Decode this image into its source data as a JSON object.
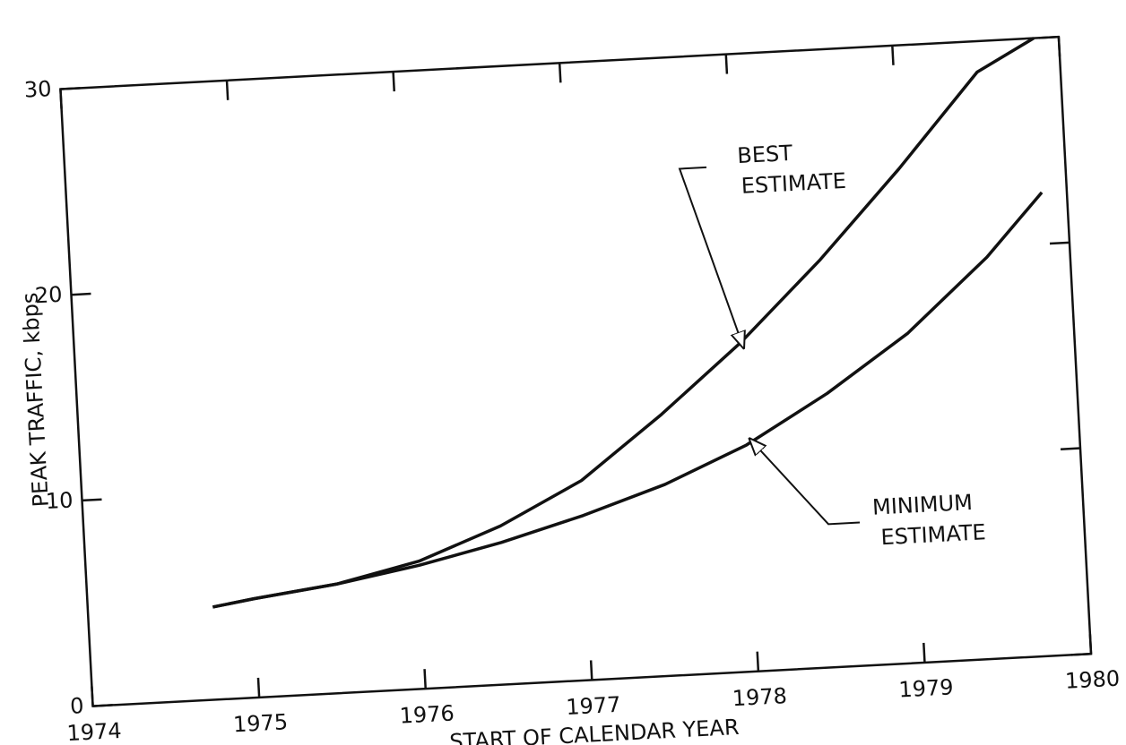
{
  "chart_data": {
    "type": "line",
    "x_label": "START OF CALENDAR YEAR",
    "y_label": "PEAK TRAFFIC, kbps",
    "x": [
      1974.75,
      1975,
      1975.5,
      1976,
      1976.5,
      1977,
      1977.5,
      1978,
      1978.5,
      1979,
      1979.5,
      1979.85
    ],
    "series": [
      {
        "name": "BEST ESTIMATE",
        "color": "#111111",
        "values": [
          4.5,
          4.8,
          5.3,
          6.2,
          7.7,
          9.7,
          12.7,
          16.0,
          19.8,
          24.0,
          28.5,
          30.0
        ]
      },
      {
        "name": "MINIMUM ESTIMATE",
        "color": "#111111",
        "values": [
          4.5,
          4.8,
          5.3,
          6.0,
          6.9,
          8.0,
          9.3,
          11.0,
          13.3,
          16.0,
          19.5,
          22.5
        ]
      }
    ],
    "xlim": [
      1974,
      1980
    ],
    "xticks": [
      1974,
      1975,
      1976,
      1977,
      1978,
      1979,
      1980
    ],
    "ylim": [
      0,
      30
    ],
    "yticks": [
      0,
      10,
      20,
      30
    ]
  }
}
